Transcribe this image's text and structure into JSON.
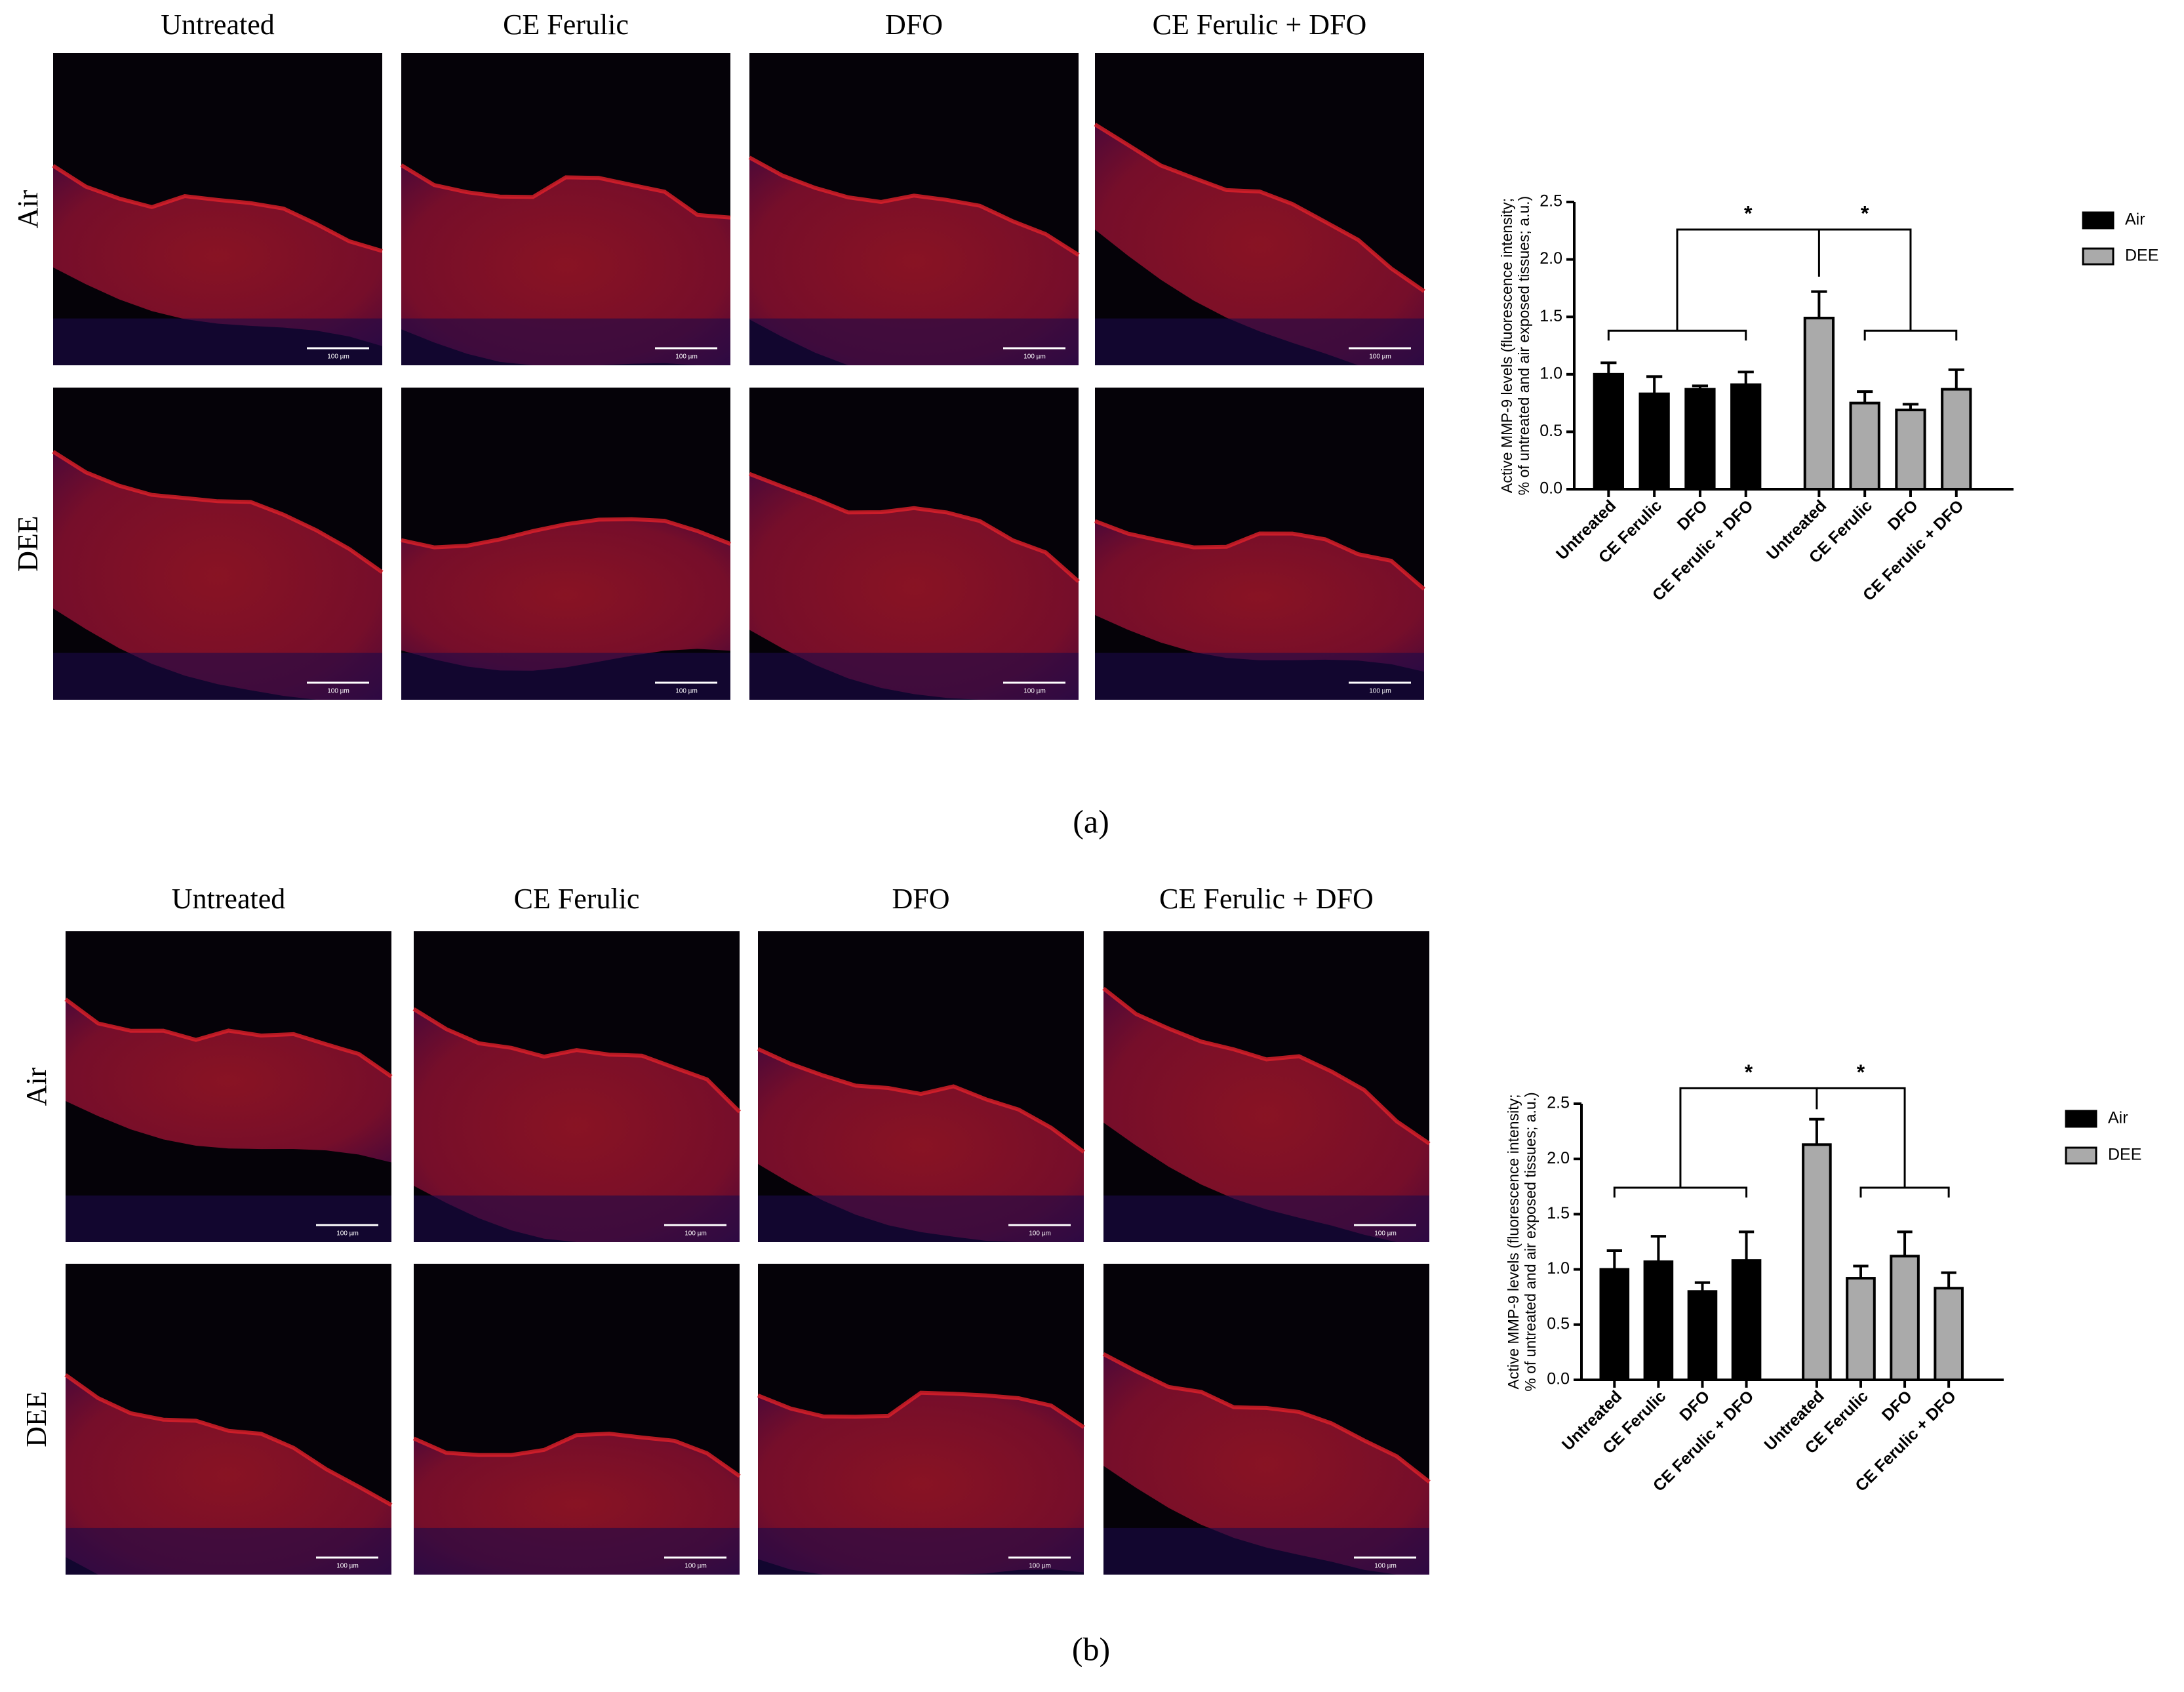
{
  "figure": {
    "panels": [
      {
        "label": "(a)",
        "columns": [
          "Untreated",
          "CE Ferulic",
          "DFO",
          "CE Ferulic + DFO"
        ],
        "rows": [
          "Air",
          "DEE"
        ]
      },
      {
        "label": "(b)",
        "columns": [
          "Untreated",
          "CE Ferulic",
          "DFO",
          "CE Ferulic + DFO"
        ],
        "rows": [
          "Air",
          "DEE"
        ]
      }
    ],
    "scale_bar": "100 µm"
  },
  "chart_data": [
    {
      "type": "bar",
      "y_label": [
        "Active MMP-9 levels (fluorescence intensity;",
        "% of untreated and air exposed tissues; a.u.)"
      ],
      "categories": [
        "Untreated",
        "CE Ferulic",
        "DFO",
        "CE Ferulic + DFO",
        "Untreated",
        "CE Ferulic",
        "DFO",
        "CE Ferulic + DFO"
      ],
      "series": [
        {
          "name": "Air",
          "color": "#000000",
          "values": [
            1.0,
            0.83,
            0.87,
            0.91,
            null,
            null,
            null,
            null
          ],
          "errors": [
            0.1,
            0.15,
            0.03,
            0.11,
            null,
            null,
            null,
            null
          ]
        },
        {
          "name": "DEE",
          "color": "#aaaaaa",
          "values": [
            null,
            null,
            null,
            null,
            1.49,
            0.75,
            0.69,
            0.87
          ],
          "errors": [
            null,
            null,
            null,
            null,
            0.23,
            0.1,
            0.05,
            0.17
          ]
        }
      ],
      "ylim": [
        0,
        2.5
      ],
      "yticks": [
        {
          "value": 0,
          "label": "0.0"
        },
        0.5,
        {
          "value": 1,
          "label": "1.0"
        },
        1.5,
        {
          "value": 2,
          "label": "2.0"
        },
        2.5
      ],
      "annotations": [
        "*",
        "*"
      ],
      "legend": "right"
    },
    {
      "type": "bar",
      "y_label": [
        "Active MMP-9 levels (fluorescence intensity;",
        "% of untreated and air exposed tissues; a.u.)"
      ],
      "categories": [
        "Untreated",
        "CE Ferulic",
        "DFO",
        "CE Ferulic + DFO",
        "Untreated",
        "CE Ferulic",
        "DFO",
        "CE Ferulic + DFO"
      ],
      "series": [
        {
          "name": "Air",
          "color": "#000000",
          "values": [
            1.0,
            1.07,
            0.8,
            1.08,
            null,
            null,
            null,
            null
          ],
          "errors": [
            0.17,
            0.23,
            0.08,
            0.26,
            null,
            null,
            null,
            null
          ]
        },
        {
          "name": "DEE",
          "color": "#aaaaaa",
          "values": [
            null,
            null,
            null,
            null,
            2.13,
            0.92,
            1.12,
            0.83
          ],
          "errors": [
            null,
            null,
            null,
            null,
            0.23,
            0.11,
            0.22,
            0.14
          ]
        }
      ],
      "ylim": [
        0,
        2.5
      ],
      "yticks": [
        {
          "value": 0,
          "label": "0.0"
        },
        0.5,
        {
          "value": 1,
          "label": "1.0"
        },
        1.5,
        {
          "value": 2,
          "label": "2.0"
        },
        2.5
      ],
      "annotations": [
        "*",
        "*"
      ],
      "legend": "right"
    }
  ]
}
